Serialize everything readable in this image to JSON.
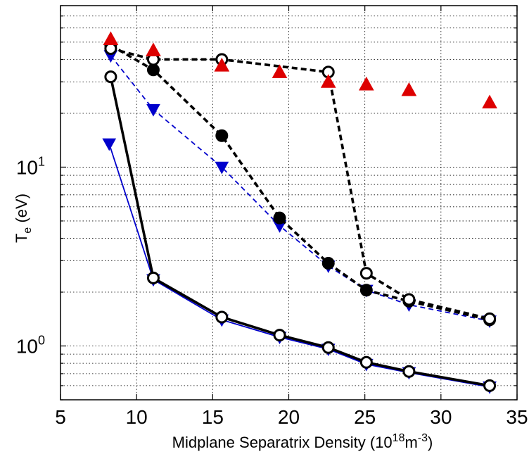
{
  "chart_data": {
    "type": "line",
    "title": "",
    "xlabel": "Midplane Separatrix Density (10",
    "xlabel_exp": "18",
    "xlabel_unit": "m",
    "xlabel_unit_exp": "-3",
    "xlabel_close": ")",
    "ylabel_main": "T",
    "ylabel_sub": "e",
    "ylabel_unit": " (eV)",
    "xlim": [
      5,
      35
    ],
    "ylim": [
      0.5,
      80
    ],
    "yscale": "log",
    "grid": "dotted",
    "x_ticks": [
      {
        "value": 5,
        "label": "5"
      },
      {
        "value": 10,
        "label": "10"
      },
      {
        "value": 15,
        "label": "15"
      },
      {
        "value": 20,
        "label": "20"
      },
      {
        "value": 25,
        "label": "25"
      },
      {
        "value": 30,
        "label": "30"
      },
      {
        "value": 35,
        "label": "35"
      }
    ],
    "y_ticks": [
      {
        "value": 1,
        "base": "10",
        "exp": "0"
      },
      {
        "value": 10,
        "base": "10",
        "exp": "1"
      }
    ],
    "series": [
      {
        "style": "solid-thin",
        "color": "#0000cc",
        "marker": "triangle-down",
        "marker_fill": "#0000cc",
        "x": [
          8.2,
          11.1,
          15.6,
          19.4,
          22.6,
          25.1,
          27.9,
          33.2
        ],
        "y": [
          13.5,
          2.35,
          1.4,
          1.12,
          0.96,
          0.79,
          0.71,
          0.59
        ]
      },
      {
        "style": "solid-thick",
        "color": "#000000",
        "marker": "circle-open",
        "marker_fill": "#ffffff",
        "x": [
          8.3,
          11.1,
          15.6,
          19.4,
          22.6,
          25.1,
          27.9,
          33.2
        ],
        "y": [
          32,
          2.4,
          1.45,
          1.15,
          0.98,
          0.81,
          0.72,
          0.6
        ]
      },
      {
        "style": "dashed-thin",
        "color": "#0000cc",
        "marker": "triangle-down",
        "marker_fill": "#0000cc",
        "x": [
          8.3,
          11.1,
          15.6,
          19.4,
          22.6,
          25.1,
          27.9,
          33.2
        ],
        "y": [
          42,
          21,
          10,
          4.7,
          2.8,
          2.05,
          1.7,
          1.38
        ]
      },
      {
        "style": "dashed-thick",
        "color": "#000000",
        "marker": "circle-filled",
        "marker_fill": "#000000",
        "x": [
          8.3,
          11.1,
          15.6,
          19.4,
          22.6,
          25.1,
          27.9,
          33.2
        ],
        "y": [
          48,
          35,
          15,
          5.2,
          2.9,
          2.05,
          1.78,
          1.4
        ]
      },
      {
        "style": "dashed-thick",
        "color": "#000000",
        "marker": "circle-open",
        "marker_fill": "#ffffff",
        "x": [
          8.3,
          11.1,
          15.6,
          22.6,
          25.1,
          27.9,
          33.2
        ],
        "y": [
          46,
          40,
          40,
          34,
          2.55,
          1.82,
          1.42
        ]
      },
      {
        "style": "none",
        "color": "#dd0000",
        "marker": "triangle-up",
        "marker_fill": "#dd0000",
        "x": [
          8.3,
          11.1,
          15.6,
          19.4,
          22.6,
          25.1,
          27.9,
          33.2
        ],
        "y": [
          52,
          45,
          37,
          34,
          30,
          29,
          27,
          23
        ]
      }
    ]
  }
}
